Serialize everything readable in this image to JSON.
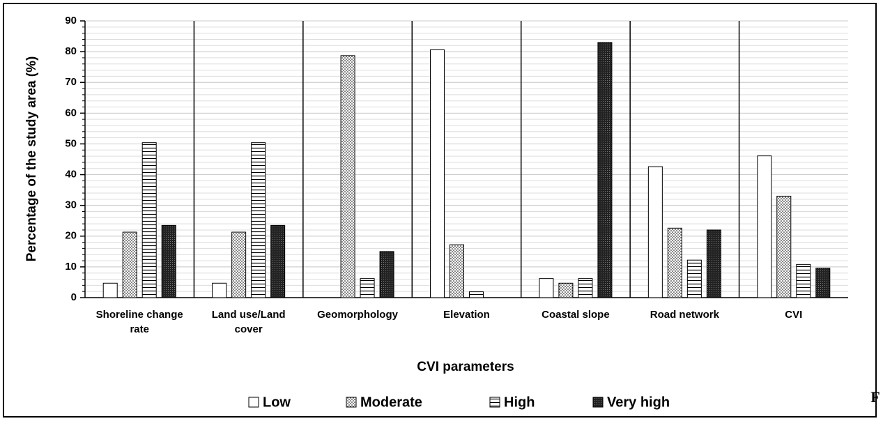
{
  "chart_data": {
    "type": "bar",
    "x_label": "CVI parameters",
    "y_label": "Percentage of the study area (%)",
    "categories": [
      "Shoreline change rate",
      "Land use/Land cover",
      "Geomorphology",
      "Elevation",
      "Coastal slope",
      "Road network",
      "CVI"
    ],
    "series": [
      {
        "name": "Low",
        "color": "#ffffff",
        "pattern": "none",
        "values": [
          4.7,
          4.7,
          0,
          80.6,
          6.2,
          42.6,
          46.1
        ]
      },
      {
        "name": "Moderate",
        "color": "#ffffff",
        "pattern": "dots",
        "values": [
          21.3,
          21.3,
          78.7,
          17.2,
          4.7,
          22.6,
          33.0
        ]
      },
      {
        "name": "High",
        "color": "#ffffff",
        "pattern": "hlines",
        "values": [
          50.4,
          50.4,
          6.2,
          1.9,
          6.2,
          12.2,
          10.8
        ]
      },
      {
        "name": "Very high",
        "color": "#222222",
        "pattern": "dense",
        "values": [
          23.5,
          23.5,
          15.0,
          0,
          83.0,
          22.0,
          9.6
        ]
      }
    ],
    "ylim": [
      0,
      90
    ],
    "yticks": [
      0,
      10,
      20,
      30,
      40,
      50,
      60,
      70,
      80,
      90
    ],
    "grid": true,
    "minor_grid_step": 2,
    "legend": "bottom",
    "annotation": "F"
  }
}
